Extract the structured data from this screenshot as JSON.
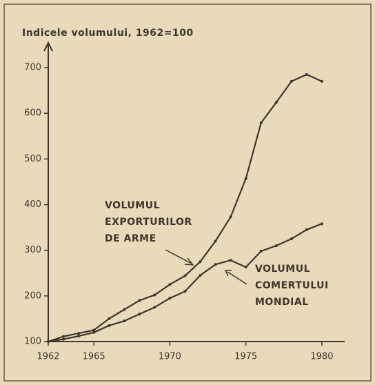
{
  "chart_data": {
    "type": "line",
    "y_label": "Indicele volumului, 1962=100",
    "x": [
      1962,
      1963,
      1964,
      1965,
      1966,
      1967,
      1968,
      1969,
      1970,
      1971,
      1972,
      1973,
      1974,
      1975,
      1976,
      1977,
      1978,
      1979,
      1980
    ],
    "series": [
      {
        "color": "#3e352c",
        "values": [
          100,
          111,
          118,
          125,
          150,
          170,
          190,
          202,
          225,
          244,
          275,
          320,
          373,
          457,
          579,
          624,
          670,
          685,
          670
        ]
      },
      {
        "color": "#3e352c",
        "values": [
          100,
          105,
          112,
          120,
          135,
          145,
          160,
          175,
          195,
          210,
          245,
          269,
          278,
          263,
          298,
          310,
          325,
          345,
          358
        ]
      }
    ],
    "annotations": [
      {
        "lines": [
          "VOLUMUL",
          "EXPORTURILOR",
          "DE ARME"
        ]
      },
      {
        "lines": [
          "VOLUMUL",
          "COMERTULUI",
          "MONDIAL"
        ]
      }
    ],
    "xlim": [
      1962,
      1981.5
    ],
    "ylim": [
      100,
      750
    ],
    "xticks": [
      1962,
      1965,
      1970,
      1975,
      1980
    ],
    "yticks": [
      100,
      200,
      300,
      400,
      500,
      600,
      700
    ]
  }
}
